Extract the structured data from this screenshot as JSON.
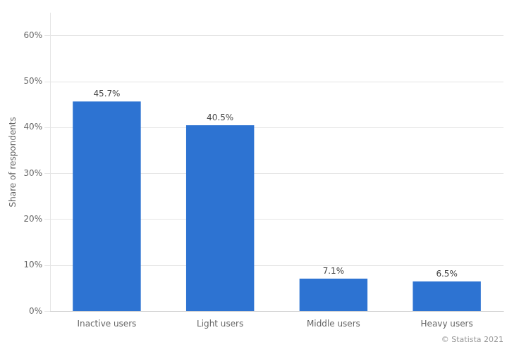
{
  "chart_data": {
    "type": "bar",
    "categories": [
      "Inactive users",
      "Light users",
      "Middle users",
      "Heavy users"
    ],
    "values": [
      45.7,
      40.5,
      7.1,
      6.5
    ],
    "value_labels": [
      "45.7%",
      "40.5%",
      "7.1%",
      "6.5%"
    ],
    "data_labels": true,
    "color": "#2D73D2",
    "ylabel": "Share of respondents",
    "ylim": [
      0,
      65
    ],
    "yticks": [
      {
        "value": 0,
        "label": "0%"
      },
      {
        "value": 10,
        "label": "10%"
      },
      {
        "value": 20,
        "label": "20%"
      },
      {
        "value": 30,
        "label": "30%"
      },
      {
        "value": 40,
        "label": "40%"
      },
      {
        "value": 50,
        "label": "50%"
      },
      {
        "value": 60,
        "label": "60%"
      }
    ],
    "grid": true,
    "annotations": [
      "© Statista 2021"
    ]
  }
}
